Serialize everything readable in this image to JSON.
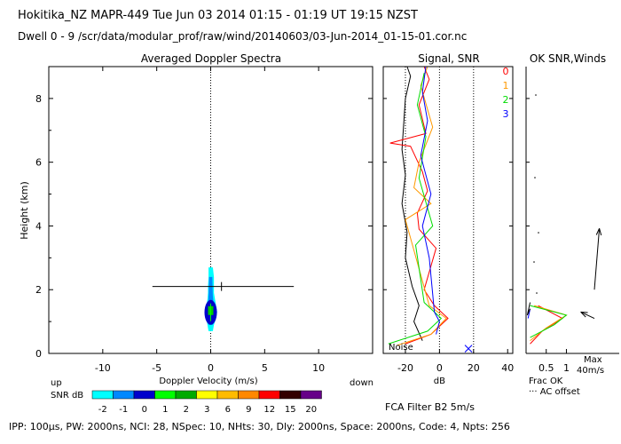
{
  "header": {
    "line1": "Hokitika_NZ   MAPR-449   Tue Jun 03 2014 01:15 - 01:19 UT 19:15 NZST",
    "line2": "Dwell   0  -  9    /scr/data/modular_prof/raw/wind/20140603/03-Jun-2014_01-15-01.cor.nc"
  },
  "footer": {
    "ipp": "IPP: 100µs,  PW: 2000ns,  NCI:  28,  NSpec: 10,  NHts: 30,  Dly: 2000ns,  Space: 2000ns,  Code: 4,  Npts: 256",
    "fca": "FCA Filter B2   5m/s"
  },
  "colors": {
    "red": "#ff0000",
    "orange": "#ff9900",
    "green": "#00dd00",
    "blue": "#0000ff",
    "snr_minus2": "#00ffff",
    "snr_minus1": "#0088ff",
    "snr_0": "#0000cc"
  },
  "chart_data": [
    {
      "type": "heatmap",
      "title": "Averaged Doppler Spectra",
      "xlabel": "Doppler Velocity (m/s)",
      "ylabel": "Height (km)",
      "xlim": [
        -15,
        15
      ],
      "ylim": [
        0,
        9
      ],
      "xticks": [
        -10,
        -5,
        0,
        5,
        10
      ],
      "yticks": [
        0,
        2,
        4,
        6,
        8
      ],
      "x_side_labels": {
        "left": "up",
        "right": "down"
      },
      "zero_line": 0,
      "error_bar": {
        "y": 2.1,
        "x_min": -5.4,
        "x_max": 7.7,
        "center": 1.0
      },
      "spectrum_core": [
        {
          "h": 0.7,
          "v_min": -0.2,
          "v_max": 0.2,
          "snr": -2
        },
        {
          "h": 0.9,
          "v_min": -0.3,
          "v_max": 0.3,
          "snr": -2
        },
        {
          "h": 1.1,
          "v_min": -0.4,
          "v_max": 0.5,
          "snr": -2
        },
        {
          "h": 1.3,
          "v_min": -0.5,
          "v_max": 0.6,
          "snr": -2
        },
        {
          "h": 1.5,
          "v_min": -0.4,
          "v_max": 0.5,
          "snr": -2
        },
        {
          "h": 1.7,
          "v_min": -0.3,
          "v_max": 0.4,
          "snr": -2
        },
        {
          "h": 1.9,
          "v_min": -0.25,
          "v_max": 0.3,
          "snr": -2
        },
        {
          "h": 2.1,
          "v_min": -0.25,
          "v_max": 0.3,
          "snr": -2
        },
        {
          "h": 2.4,
          "v_min": -0.2,
          "v_max": 0.3,
          "snr": -2
        },
        {
          "h": 2.7,
          "v_min": -0.2,
          "v_max": 0.2,
          "snr": -2
        },
        {
          "h": 1.4,
          "v_min": -0.5,
          "v_max": 0.5,
          "snr": 0
        }
      ]
    },
    {
      "type": "line",
      "title": "Signal, SNR",
      "xlabel": "dB",
      "xlim": [
        -33,
        43
      ],
      "ylim": [
        0,
        9
      ],
      "xticks": [
        -20,
        0,
        20,
        40
      ],
      "dotted_verticals": [
        -20,
        0,
        20
      ],
      "noise_label": "Noise",
      "series": [
        {
          "name": "signal",
          "color": "#000000",
          "points": [
            [
              -10,
              0.4
            ],
            [
              -15,
              1.0
            ],
            [
              -12,
              1.5
            ],
            [
              -16,
              2.1
            ],
            [
              -20,
              3.0
            ],
            [
              -19,
              3.8
            ],
            [
              -22,
              4.7
            ],
            [
              -20,
              5.6
            ],
            [
              -22,
              6.4
            ],
            [
              -21,
              7.2
            ],
            [
              -20,
              8.0
            ],
            [
              -17,
              8.7
            ],
            [
              -19,
              9.0
            ]
          ]
        },
        {
          "name": "0",
          "color": "#ff0000",
          "points": [
            [
              -20,
              0.3
            ],
            [
              -5,
              0.6
            ],
            [
              5,
              1.1
            ],
            [
              -3,
              1.5
            ],
            [
              -9,
              2.0
            ],
            [
              -2,
              3.3
            ],
            [
              -12,
              3.9
            ],
            [
              -13,
              4.4
            ],
            [
              -7,
              5.1
            ],
            [
              -10,
              5.7
            ],
            [
              -17,
              6.5
            ],
            [
              -29,
              6.6
            ],
            [
              -8,
              6.9
            ],
            [
              -12,
              7.8
            ],
            [
              -6,
              8.6
            ],
            [
              -9,
              9.0
            ]
          ]
        },
        {
          "name": "1",
          "color": "#ff9900",
          "points": [
            [
              -25,
              0.25
            ],
            [
              -5,
              0.6
            ],
            [
              4,
              1.1
            ],
            [
              -6,
              1.5
            ],
            [
              -20,
              4.2
            ],
            [
              -5,
              4.7
            ],
            [
              -15,
              5.2
            ],
            [
              -12,
              6.0
            ],
            [
              -4,
              7.1
            ],
            [
              -11,
              8.4
            ],
            [
              -7,
              9.0
            ]
          ]
        },
        {
          "name": "2",
          "color": "#00dd00",
          "points": [
            [
              -30,
              0.3
            ],
            [
              -7,
              0.7
            ],
            [
              1,
              1.1
            ],
            [
              -9,
              1.6
            ],
            [
              -14,
              3.4
            ],
            [
              -4,
              4.0
            ],
            [
              -12,
              5.5
            ],
            [
              -8,
              6.8
            ],
            [
              -13,
              7.8
            ],
            [
              -9,
              8.8
            ]
          ]
        },
        {
          "name": "3",
          "color": "#0000ff",
          "points": [
            [
              -2,
              0.6
            ],
            [
              0,
              1.0
            ],
            [
              -3,
              1.3
            ],
            [
              -6,
              3.0
            ],
            [
              -10,
              4.0
            ],
            [
              -5,
              5.0
            ],
            [
              -11,
              6.2
            ],
            [
              -7,
              7.3
            ],
            [
              -10,
              8.2
            ],
            [
              -8,
              9.0
            ]
          ]
        }
      ],
      "legend": [
        "0",
        "1",
        "2",
        "3"
      ],
      "noise_mark": {
        "x": 17,
        "y": 0.15
      }
    },
    {
      "type": "line",
      "title": "OK SNR,Winds",
      "xlabel": "Frac OK",
      "xlim": [
        0,
        1.1
      ],
      "ylim": [
        0,
        9
      ],
      "xticks": [
        0.5,
        1
      ],
      "xtick_labels": [
        "0.5",
        "1"
      ],
      "extra_labels": {
        "max": "Max",
        "max_value": "40m/s",
        "ac_offset": "··· AC offset"
      },
      "series": [
        {
          "name": "0",
          "color": "#ff0000",
          "points": [
            [
              0.1,
              0.3
            ],
            [
              0.4,
              0.7
            ],
            [
              0.9,
              1.1
            ],
            [
              0.3,
              1.5
            ]
          ]
        },
        {
          "name": "1",
          "color": "#ff9900",
          "points": [
            [
              0.1,
              0.4
            ],
            [
              0.5,
              0.8
            ],
            [
              1.0,
              1.2
            ],
            [
              0.2,
              1.5
            ]
          ]
        },
        {
          "name": "2",
          "color": "#00dd00",
          "points": [
            [
              0.1,
              0.5
            ],
            [
              0.7,
              0.9
            ],
            [
              1.0,
              1.2
            ],
            [
              0.1,
              1.5
            ]
          ]
        },
        {
          "name": "3",
          "color": "#0000ff",
          "points": [
            [
              0.05,
              1.1
            ],
            [
              0.1,
              1.4
            ]
          ]
        },
        {
          "name": "signal",
          "color": "#000000",
          "points": [
            [
              0.1,
              1.4
            ],
            [
              0.03,
              1.2
            ],
            [
              0.1,
              1.6
            ]
          ]
        }
      ],
      "wind_barbs": [
        {
          "h": 1.1,
          "dx": -0.55,
          "dy": 0.12
        },
        {
          "h": 2.0,
          "dx": 0.2,
          "dy": 1.15
        }
      ]
    },
    {
      "type": "table",
      "title": "SNR dB colorbar",
      "label": "SNR dB",
      "levels": [
        "-2",
        "-1",
        "0",
        "1",
        "2",
        "3",
        "6",
        "9",
        "12",
        "15",
        "20"
      ],
      "colors": [
        "#00ffff",
        "#0088ff",
        "#0000cc",
        "#00ff00",
        "#00aa00",
        "#ffff00",
        "#ffbb00",
        "#ff8800",
        "#ff0000",
        "#330000",
        "#660088"
      ]
    }
  ]
}
